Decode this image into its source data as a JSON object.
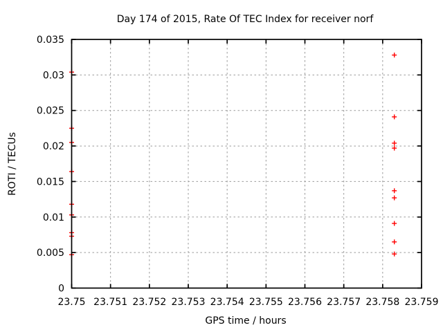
{
  "window": {
    "background": "#ffffff"
  },
  "chart_data": {
    "type": "scatter",
    "title": "Day 174 of 2015, Rate Of TEC Index for receiver norf",
    "xlabel": "GPS time / hours",
    "ylabel": "ROTI / TECUs",
    "xlim": [
      23.75,
      23.759
    ],
    "ylim": [
      0,
      0.035
    ],
    "grid": true,
    "grid_style": "dotted",
    "legend_position": "none",
    "colors": {
      "marker": "#ff0000",
      "grid": "#999999",
      "axis": "#000000",
      "background": "#ffffff",
      "text": "#000000"
    },
    "x_ticks": [
      {
        "v": 23.75,
        "label": "23.75"
      },
      {
        "v": 23.751,
        "label": "23.751"
      },
      {
        "v": 23.752,
        "label": "23.752"
      },
      {
        "v": 23.753,
        "label": "23.753"
      },
      {
        "v": 23.754,
        "label": "23.754"
      },
      {
        "v": 23.755,
        "label": "23.755"
      },
      {
        "v": 23.756,
        "label": "23.756"
      },
      {
        "v": 23.757,
        "label": "23.757"
      },
      {
        "v": 23.758,
        "label": "23.758"
      },
      {
        "v": 23.759,
        "label": "23.759"
      }
    ],
    "y_ticks": [
      {
        "v": 0,
        "label": "0"
      },
      {
        "v": 0.005,
        "label": "0.005"
      },
      {
        "v": 0.01,
        "label": "0.01"
      },
      {
        "v": 0.015,
        "label": "0.015"
      },
      {
        "v": 0.02,
        "label": "0.02"
      },
      {
        "v": 0.025,
        "label": "0.025"
      },
      {
        "v": 0.03,
        "label": "0.03"
      },
      {
        "v": 0.035,
        "label": "0.035"
      }
    ],
    "series": [
      {
        "name": "ROTI",
        "marker": "plus",
        "color": "#ff0000",
        "points": [
          [
            23.75,
            0.0304
          ],
          [
            23.75,
            0.0225
          ],
          [
            23.75,
            0.0205
          ],
          [
            23.75,
            0.0164
          ],
          [
            23.75,
            0.0118
          ],
          [
            23.75,
            0.0103
          ],
          [
            23.75,
            0.0078
          ],
          [
            23.75,
            0.0073
          ],
          [
            23.75,
            0.0047
          ],
          [
            23.7583,
            0.0328
          ],
          [
            23.7583,
            0.0241
          ],
          [
            23.7583,
            0.0204
          ],
          [
            23.7583,
            0.0197
          ],
          [
            23.7583,
            0.0137
          ],
          [
            23.7583,
            0.0127
          ],
          [
            23.7583,
            0.0091
          ],
          [
            23.7583,
            0.0065
          ],
          [
            23.7583,
            0.0048
          ]
        ]
      }
    ]
  }
}
